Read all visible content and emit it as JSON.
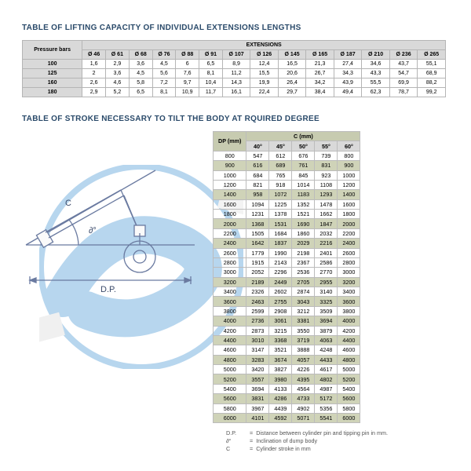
{
  "titles": {
    "t1": "TABLE OF LIFTING CAPACITY OF INDIVIDUAL EXTENSIONS LENGTHS",
    "t2": "TABLE OF STROKE NECESSARY TO TILT THE BODY AT RQUIRED DEGREE"
  },
  "colors": {
    "header_bg": "#d9d9d9",
    "accent_bg": "#cfd3b8",
    "border": "#bcbcbc",
    "title_color": "#2a4a6a",
    "bg_watermark": "#b7d6ee"
  },
  "table1": {
    "corner": "Pressure bars",
    "group_header": "EXTENSIONS",
    "cols": [
      "Ø 46",
      "Ø 61",
      "Ø 68",
      "Ø 76",
      "Ø 88",
      "Ø 91",
      "Ø 107",
      "Ø 126",
      "Ø 145",
      "Ø 165",
      "Ø 187",
      "Ø 210",
      "Ø 236",
      "Ø 265"
    ],
    "rows": [
      {
        "h": "100",
        "v": [
          "1,6",
          "2,9",
          "3,6",
          "4,5",
          "6",
          "6,5",
          "8,9",
          "12,4",
          "16,5",
          "21,3",
          "27,4",
          "34,6",
          "43,7",
          "55,1"
        ]
      },
      {
        "h": "125",
        "v": [
          "2",
          "3,6",
          "4,5",
          "5,6",
          "7,6",
          "8,1",
          "11,2",
          "15,5",
          "20,6",
          "26,7",
          "34,3",
          "43,3",
          "54,7",
          "68,9"
        ]
      },
      {
        "h": "160",
        "v": [
          "2,6",
          "4,6",
          "5,8",
          "7,2",
          "9,7",
          "10,4",
          "14,3",
          "19,9",
          "26,4",
          "34,2",
          "43,9",
          "55,5",
          "69,9",
          "88,2"
        ]
      },
      {
        "h": "180",
        "v": [
          "2,9",
          "5,2",
          "6,5",
          "8,1",
          "10,9",
          "11,7",
          "16,1",
          "22,4",
          "29,7",
          "38,4",
          "49,4",
          "62,3",
          "78,7",
          "99,2"
        ]
      }
    ]
  },
  "table2": {
    "dp_header": "DP (mm)",
    "c_header": "C (mm)",
    "angles": [
      "40°",
      "45°",
      "50°",
      "55°",
      "60°"
    ],
    "rows": [
      {
        "dp": "800",
        "v": [
          "547",
          "612",
          "676",
          "739",
          "800"
        ]
      },
      {
        "dp": "900",
        "v": [
          "616",
          "689",
          "761",
          "831",
          "900"
        ]
      },
      {
        "dp": "1000",
        "v": [
          "684",
          "765",
          "845",
          "923",
          "1000"
        ]
      },
      {
        "dp": "1200",
        "v": [
          "821",
          "918",
          "1014",
          "1108",
          "1200"
        ]
      },
      {
        "dp": "1400",
        "v": [
          "958",
          "1072",
          "1183",
          "1293",
          "1400"
        ]
      },
      {
        "dp": "1600",
        "v": [
          "1094",
          "1225",
          "1352",
          "1478",
          "1600"
        ]
      },
      {
        "dp": "1800",
        "v": [
          "1231",
          "1378",
          "1521",
          "1662",
          "1800"
        ]
      },
      {
        "dp": "2000",
        "v": [
          "1368",
          "1531",
          "1690",
          "1847",
          "2000"
        ]
      },
      {
        "dp": "2200",
        "v": [
          "1505",
          "1684",
          "1860",
          "2032",
          "2200"
        ]
      },
      {
        "dp": "2400",
        "v": [
          "1642",
          "1837",
          "2029",
          "2216",
          "2400"
        ]
      },
      {
        "dp": "2600",
        "v": [
          "1779",
          "1990",
          "2198",
          "2401",
          "2600"
        ]
      },
      {
        "dp": "2800",
        "v": [
          "1915",
          "2143",
          "2367",
          "2586",
          "2800"
        ]
      },
      {
        "dp": "3000",
        "v": [
          "2052",
          "2296",
          "2536",
          "2770",
          "3000"
        ]
      },
      {
        "dp": "3200",
        "v": [
          "2189",
          "2449",
          "2705",
          "2955",
          "3200"
        ]
      },
      {
        "dp": "3400",
        "v": [
          "2326",
          "2602",
          "2874",
          "3140",
          "3400"
        ]
      },
      {
        "dp": "3600",
        "v": [
          "2463",
          "2755",
          "3043",
          "3325",
          "3600"
        ]
      },
      {
        "dp": "3800",
        "v": [
          "2599",
          "2908",
          "3212",
          "3509",
          "3800"
        ]
      },
      {
        "dp": "4000",
        "v": [
          "2736",
          "3061",
          "3381",
          "3694",
          "4000"
        ]
      },
      {
        "dp": "4200",
        "v": [
          "2873",
          "3215",
          "3550",
          "3879",
          "4200"
        ]
      },
      {
        "dp": "4400",
        "v": [
          "3010",
          "3368",
          "3719",
          "4063",
          "4400"
        ]
      },
      {
        "dp": "4600",
        "v": [
          "3147",
          "3521",
          "3888",
          "4248",
          "4600"
        ]
      },
      {
        "dp": "4800",
        "v": [
          "3283",
          "3674",
          "4057",
          "4433",
          "4800"
        ]
      },
      {
        "dp": "5000",
        "v": [
          "3420",
          "3827",
          "4226",
          "4617",
          "5000"
        ]
      },
      {
        "dp": "5200",
        "v": [
          "3557",
          "3980",
          "4395",
          "4802",
          "5200"
        ]
      },
      {
        "dp": "5400",
        "v": [
          "3694",
          "4133",
          "4564",
          "4987",
          "5400"
        ]
      },
      {
        "dp": "5600",
        "v": [
          "3831",
          "4286",
          "4733",
          "5172",
          "5600"
        ]
      },
      {
        "dp": "5800",
        "v": [
          "3967",
          "4439",
          "4902",
          "5356",
          "5800"
        ]
      },
      {
        "dp": "6000",
        "v": [
          "4101",
          "4592",
          "5071",
          "5541",
          "6000"
        ]
      }
    ],
    "stripe_rows": [
      1,
      4,
      7,
      9,
      13,
      15,
      17,
      19,
      21,
      23,
      25,
      27
    ]
  },
  "legend": {
    "l1": {
      "sym": "D.P.",
      "txt": "Distance between cylinder pin and tipping pin in mm."
    },
    "l2": {
      "sym": "∂°",
      "txt": "Inclination of dump body"
    },
    "l3": {
      "sym": "C",
      "txt": "Cylinder stroke in mm"
    }
  },
  "diagram": {
    "labels": {
      "C": "C",
      "angle": "∂°",
      "DP": "D.P."
    },
    "line_color": "#6a7aa0"
  }
}
